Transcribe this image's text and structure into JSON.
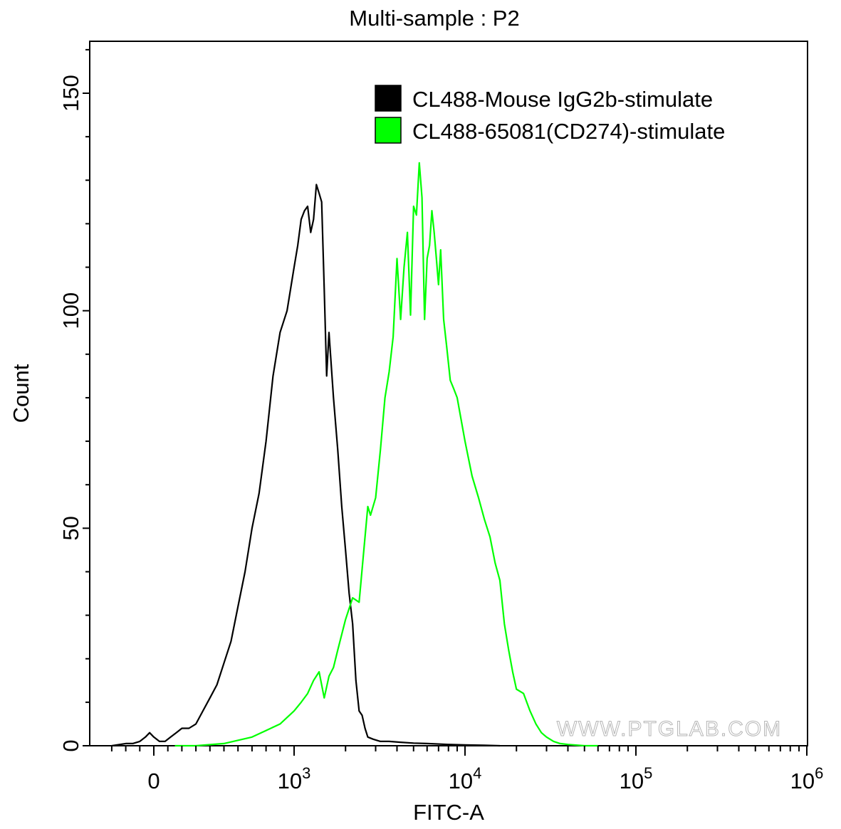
{
  "chart_data": {
    "type": "histogram",
    "title": "Multi-sample : P2",
    "xlabel": "FITC-A",
    "ylabel": "Count",
    "x_scale": "biexponential",
    "x_ticks": [
      {
        "value": 0,
        "base": "0",
        "exp": ""
      },
      {
        "value": 1000,
        "base": "10",
        "exp": "3"
      },
      {
        "value": 10000,
        "base": "10",
        "exp": "4"
      },
      {
        "value": 100000,
        "base": "10",
        "exp": "5"
      },
      {
        "value": 1000000,
        "base": "10",
        "exp": "6"
      }
    ],
    "ylim": [
      0,
      160
    ],
    "y_ticks": [
      0,
      50,
      100,
      150
    ],
    "grid": false,
    "legend_position": "top-right",
    "watermark": "WWW.PTGLAB.COM",
    "series": [
      {
        "name": "CL488-Mouse IgG2b-stimulate",
        "color": "#000000",
        "points": [
          [
            -300,
            0
          ],
          [
            -200,
            0.5
          ],
          [
            -150,
            0.5
          ],
          [
            -100,
            1
          ],
          [
            -60,
            2
          ],
          [
            -30,
            3
          ],
          [
            0,
            2
          ],
          [
            40,
            1
          ],
          [
            80,
            1
          ],
          [
            120,
            2
          ],
          [
            160,
            3
          ],
          [
            200,
            4
          ],
          [
            250,
            4
          ],
          [
            300,
            5
          ],
          [
            350,
            8
          ],
          [
            400,
            11
          ],
          [
            450,
            14
          ],
          [
            500,
            19
          ],
          [
            550,
            24
          ],
          [
            600,
            32
          ],
          [
            650,
            40
          ],
          [
            700,
            50
          ],
          [
            750,
            58
          ],
          [
            800,
            70
          ],
          [
            850,
            85
          ],
          [
            900,
            95
          ],
          [
            950,
            100
          ],
          [
            1000,
            110
          ],
          [
            1050,
            115
          ],
          [
            1100,
            121
          ],
          [
            1150,
            123
          ],
          [
            1200,
            124
          ],
          [
            1250,
            118
          ],
          [
            1300,
            121
          ],
          [
            1350,
            129
          ],
          [
            1400,
            127
          ],
          [
            1450,
            125
          ],
          [
            1500,
            105
          ],
          [
            1550,
            85
          ],
          [
            1600,
            95
          ],
          [
            1700,
            80
          ],
          [
            1800,
            68
          ],
          [
            1900,
            55
          ],
          [
            2000,
            45
          ],
          [
            2100,
            35
          ],
          [
            2200,
            28
          ],
          [
            2300,
            15
          ],
          [
            2400,
            8
          ],
          [
            2500,
            7
          ],
          [
            2600,
            4
          ],
          [
            2700,
            2
          ],
          [
            2900,
            1.5
          ],
          [
            3200,
            1
          ],
          [
            3600,
            1
          ],
          [
            4200,
            0.8
          ],
          [
            5000,
            0.6
          ],
          [
            6000,
            0.5
          ],
          [
            8000,
            0.3
          ],
          [
            10000,
            0.2
          ],
          [
            13000,
            0.1
          ],
          [
            16000,
            0
          ]
        ]
      },
      {
        "name": "CL488-65081(CD274)-stimulate",
        "color": "#00ff00",
        "points": [
          [
            150,
            0
          ],
          [
            300,
            0
          ],
          [
            500,
            0.5
          ],
          [
            700,
            2
          ],
          [
            800,
            3.5
          ],
          [
            900,
            5
          ],
          [
            1000,
            8
          ],
          [
            1100,
            10
          ],
          [
            1200,
            12
          ],
          [
            1300,
            15
          ],
          [
            1400,
            17
          ],
          [
            1500,
            11
          ],
          [
            1600,
            16
          ],
          [
            1700,
            18
          ],
          [
            1800,
            22
          ],
          [
            2000,
            29
          ],
          [
            2200,
            34
          ],
          [
            2400,
            33
          ],
          [
            2600,
            48
          ],
          [
            2700,
            55
          ],
          [
            2800,
            53
          ],
          [
            3000,
            57
          ],
          [
            3200,
            68
          ],
          [
            3400,
            80
          ],
          [
            3600,
            86
          ],
          [
            3800,
            94
          ],
          [
            4000,
            112
          ],
          [
            4200,
            98
          ],
          [
            4400,
            110
          ],
          [
            4600,
            118
          ],
          [
            4800,
            99
          ],
          [
            5000,
            124
          ],
          [
            5200,
            122
          ],
          [
            5400,
            134
          ],
          [
            5600,
            126
          ],
          [
            5800,
            98
          ],
          [
            6000,
            112
          ],
          [
            6200,
            115
          ],
          [
            6400,
            123
          ],
          [
            6600,
            118
          ],
          [
            6800,
            112
          ],
          [
            7000,
            106
          ],
          [
            7200,
            114
          ],
          [
            7500,
            98
          ],
          [
            7800,
            92
          ],
          [
            8200,
            84
          ],
          [
            8600,
            82
          ],
          [
            9000,
            80
          ],
          [
            10000,
            70
          ],
          [
            11000,
            62
          ],
          [
            12000,
            57
          ],
          [
            13000,
            52
          ],
          [
            14000,
            48
          ],
          [
            15000,
            42
          ],
          [
            16000,
            38
          ],
          [
            17000,
            28
          ],
          [
            18000,
            22
          ],
          [
            19000,
            17
          ],
          [
            20000,
            13
          ],
          [
            22000,
            12
          ],
          [
            24000,
            8
          ],
          [
            26000,
            5
          ],
          [
            28000,
            3
          ],
          [
            30000,
            2
          ],
          [
            33000,
            1
          ],
          [
            36000,
            0.5
          ],
          [
            40000,
            0.3
          ],
          [
            50000,
            0
          ],
          [
            60000,
            0
          ]
        ]
      }
    ]
  }
}
